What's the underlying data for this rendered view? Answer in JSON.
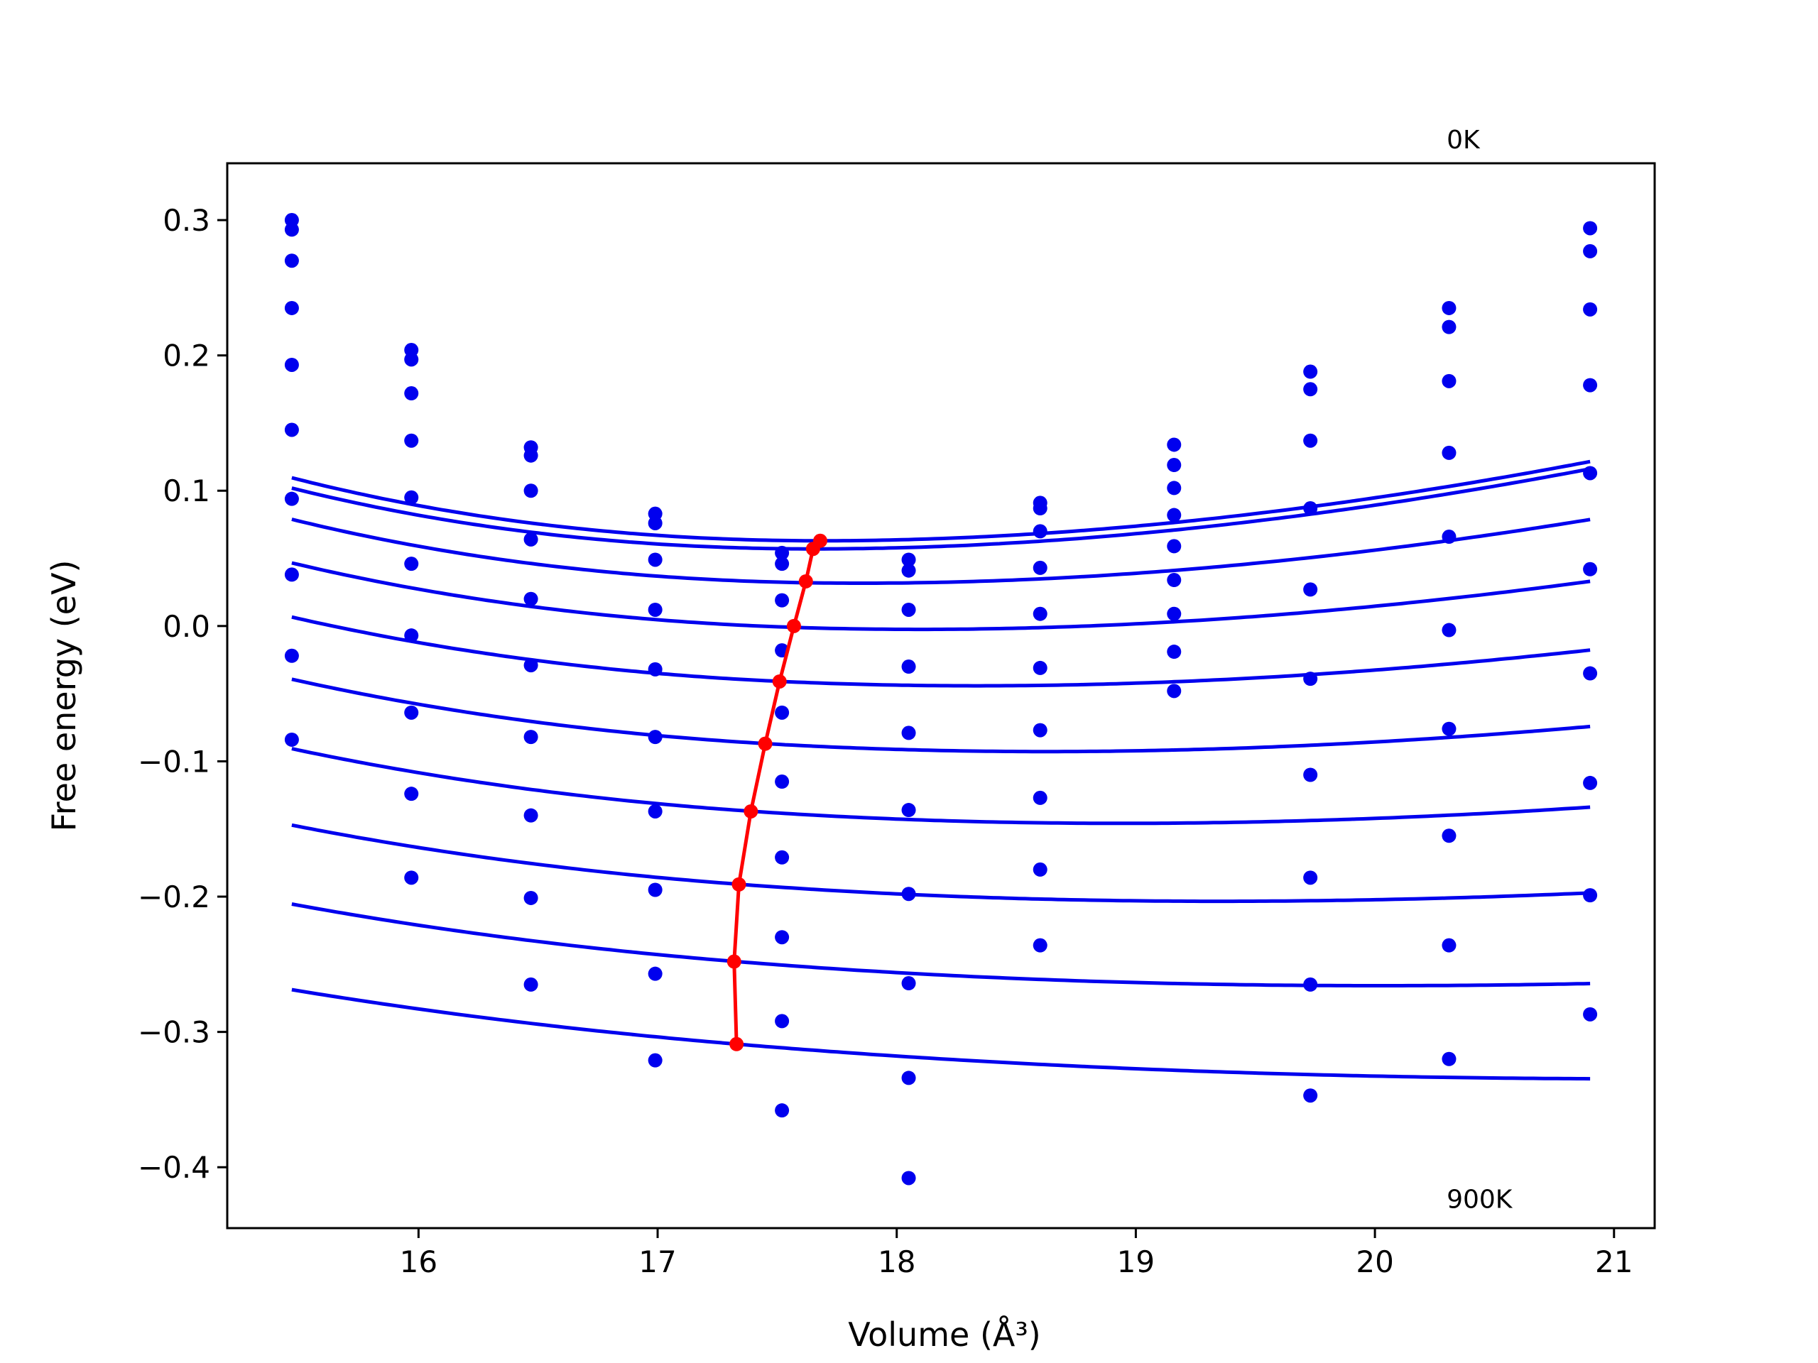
{
  "chart_data": {
    "type": "line",
    "title": "",
    "xlabel": "Volume (Å³)",
    "ylabel": "Free energy (eV)",
    "xlim": [
      15.2,
      21.17
    ],
    "ylim": [
      -0.445,
      0.342
    ],
    "xticks": [
      16,
      17,
      18,
      19,
      20,
      21
    ],
    "xtick_labels": [
      "16",
      "17",
      "18",
      "19",
      "20",
      "21"
    ],
    "yticks": [
      -0.4,
      -0.3,
      -0.2,
      -0.1,
      0.0,
      0.1,
      0.2,
      0.3
    ],
    "ytick_labels": [
      "−0.4",
      "−0.3",
      "−0.2",
      "−0.1",
      "0.0",
      "0.1",
      "0.2",
      "0.3"
    ],
    "grid": false,
    "annotations": [
      {
        "text": "0K",
        "x": 20.3,
        "y": 0.353
      },
      {
        "text": "900K",
        "x": 20.3,
        "y": -0.43
      }
    ],
    "colors": {
      "fit_curves": "#0000ee",
      "data_points": "#0000ee",
      "minimum_line": "#ff0000"
    },
    "data_points_x": [
      15.47,
      15.97,
      16.47,
      16.99,
      17.52,
      18.05,
      18.6,
      19.16,
      19.73,
      20.31,
      20.9
    ],
    "fit_curves": [
      {
        "x_min": 15.47,
        "x_max": 20.9,
        "v0": 17.68,
        "e0": 0.063,
        "b": 0.118,
        "c": 0.0
      },
      {
        "x_min": 15.47,
        "x_max": 20.9,
        "v0": 17.65,
        "e0": 0.057,
        "b": 0.117,
        "c": 0.0
      },
      {
        "x_min": 15.47,
        "x_max": 20.9,
        "v0": 17.62,
        "e0": 0.032,
        "b": 0.109,
        "c": -0.01
      },
      {
        "x_min": 15.47,
        "x_max": 20.9,
        "v0": 17.57,
        "e0": -0.001,
        "b": 0.1,
        "c": -0.02
      },
      {
        "x_min": 15.47,
        "x_max": 20.9,
        "v0": 17.52,
        "e0": -0.041,
        "b": 0.092,
        "c": -0.028
      },
      {
        "x_min": 15.47,
        "x_max": 20.9,
        "v0": 17.46,
        "e0": -0.087,
        "b": 0.085,
        "c": -0.036
      },
      {
        "x_min": 15.47,
        "x_max": 20.9,
        "v0": 17.4,
        "e0": -0.137,
        "b": 0.077,
        "c": -0.042
      },
      {
        "x_min": 15.47,
        "x_max": 20.9,
        "v0": 17.35,
        "e0": -0.191,
        "b": 0.067,
        "c": -0.046
      },
      {
        "x_min": 15.47,
        "x_max": 20.9,
        "v0": 17.33,
        "e0": -0.248,
        "b": 0.057,
        "c": -0.05
      },
      {
        "x_min": 15.47,
        "x_max": 20.9,
        "v0": 17.33,
        "e0": -0.309,
        "b": 0.045,
        "c": -0.052
      }
    ],
    "scatter_series": [
      {
        "y": [
          0.3,
          0.204,
          0.132,
          0.083,
          0.054,
          0.049,
          0.091,
          0.134,
          0.188,
          0.235,
          0.294
        ]
      },
      {
        "y": [
          0.293,
          0.197,
          0.126,
          0.076,
          0.046,
          0.041,
          0.087,
          0.119,
          0.175,
          0.221,
          0.277
        ]
      },
      {
        "y": [
          0.27,
          0.172,
          0.1,
          0.049,
          0.019,
          0.012,
          0.07,
          0.102,
          0.137,
          0.181,
          0.234
        ]
      },
      {
        "y": [
          0.235,
          0.137,
          0.064,
          0.012,
          -0.018,
          -0.03,
          0.043,
          0.082,
          0.087,
          0.128,
          0.178
        ]
      },
      {
        "y": [
          0.193,
          0.095,
          0.02,
          -0.032,
          -0.064,
          -0.079,
          0.009,
          0.059,
          0.027,
          0.066,
          0.113
        ]
      },
      {
        "y": [
          0.145,
          0.046,
          -0.029,
          -0.082,
          -0.115,
          -0.136,
          -0.031,
          0.034,
          -0.039,
          -0.003,
          0.042
        ]
      },
      {
        "y": [
          0.094,
          -0.007,
          -0.082,
          -0.137,
          -0.171,
          -0.198,
          -0.077,
          0.009,
          -0.11,
          -0.076,
          -0.035
        ]
      },
      {
        "y": [
          0.038,
          -0.064,
          -0.14,
          -0.195,
          -0.23,
          -0.264,
          -0.127,
          -0.019,
          -0.186,
          -0.155,
          -0.116
        ]
      },
      {
        "y": [
          -0.022,
          -0.124,
          -0.201,
          -0.257,
          -0.292,
          -0.334,
          -0.18,
          -0.048,
          -0.265,
          -0.236,
          -0.199
        ]
      },
      {
        "y": [
          -0.084,
          -0.186,
          -0.265,
          -0.321,
          -0.358,
          -0.408,
          -0.236,
          null,
          -0.347,
          -0.32,
          -0.287
        ]
      }
    ],
    "minimum_line": {
      "x": [
        17.68,
        17.65,
        17.62,
        17.57,
        17.51,
        17.45,
        17.39,
        17.34,
        17.32,
        17.33
      ],
      "y": [
        0.063,
        0.057,
        0.033,
        0.0,
        -0.041,
        -0.087,
        -0.137,
        -0.191,
        -0.248,
        -0.309
      ]
    }
  }
}
